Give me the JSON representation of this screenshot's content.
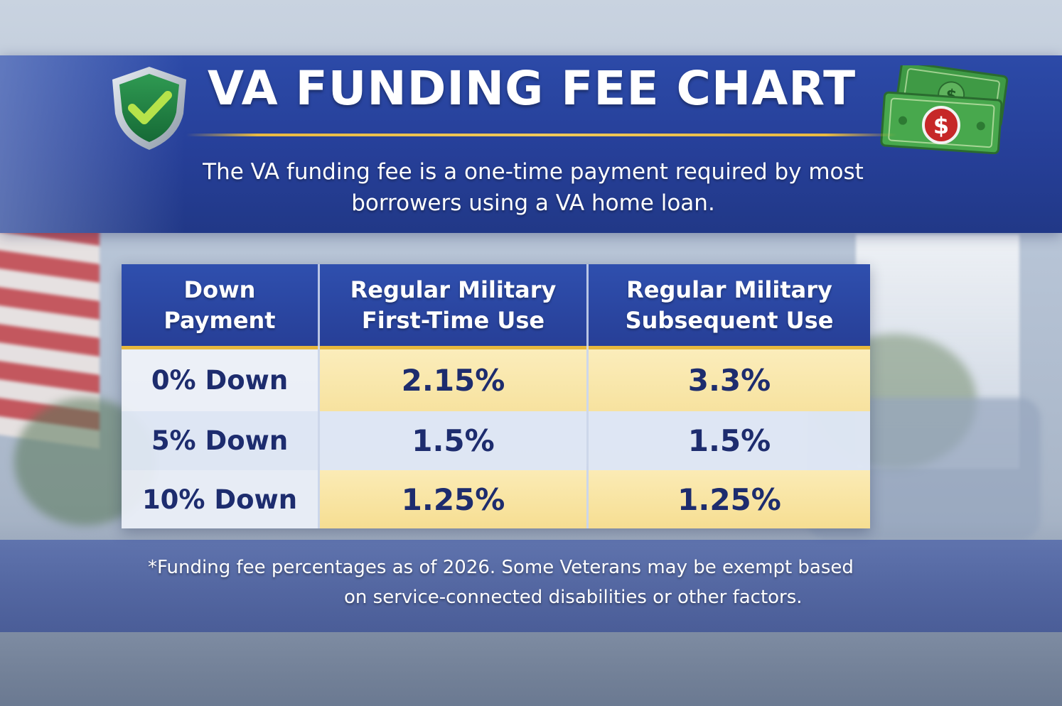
{
  "header": {
    "title": "VA FUNDING FEE CHART",
    "subtitle_line1": "The VA funding fee is a one-time payment required by most",
    "subtitle_line2": "borrowers using a VA home loan."
  },
  "icons": [
    "shield-check-icon",
    "money-bills-icon",
    "dollar-coin-icon"
  ],
  "colors": {
    "banner_blue": "#263f98",
    "header_blue": "#2f4fae",
    "gold_accent": "#e7b83e",
    "text_navy": "#1d2c6e",
    "cell_gold": "#f7e29f",
    "cell_light": "#e2e9f6"
  },
  "chart_data": {
    "type": "table",
    "columns": [
      {
        "line1": "Down",
        "line2": "Payment"
      },
      {
        "line1": "Regular Military",
        "line2": "First-Time Use"
      },
      {
        "line1": "Regular Military",
        "line2": "Subsequent Use"
      }
    ],
    "rows": [
      {
        "label": "0% Down",
        "first_time": "2.15%",
        "subsequent": "3.3%"
      },
      {
        "label": "5% Down",
        "first_time": "1.5%",
        "subsequent": "1.5%"
      },
      {
        "label": "10% Down",
        "first_time": "1.25%",
        "subsequent": "1.25%"
      }
    ]
  },
  "footnote": {
    "line1": "*Funding fee percentages as of 2026. Some Veterans may be exempt based",
    "line2": "on service-connected disabilities or other factors."
  }
}
